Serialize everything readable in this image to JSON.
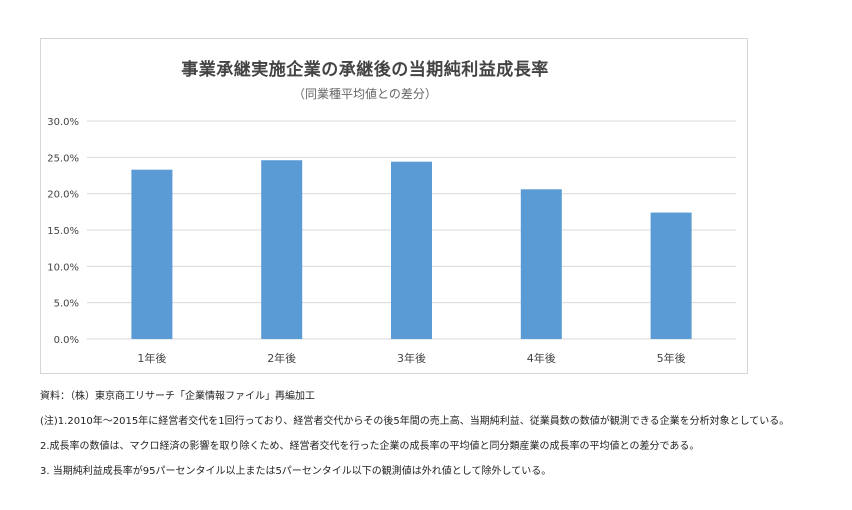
{
  "chart_data": {
    "type": "bar",
    "title": "事業承継実施企業の承継後の当期純利益成長率",
    "subtitle": "（同業種平均値との差分）",
    "categories": [
      "1年後",
      "2年後",
      "3年後",
      "4年後",
      "5年後"
    ],
    "values": [
      23.3,
      24.6,
      24.4,
      20.6,
      17.4
    ],
    "y_ticks": [
      "0.0%",
      "5.0%",
      "10.0%",
      "15.0%",
      "20.0%",
      "25.0%",
      "30.0%"
    ],
    "ylim": [
      0,
      30
    ],
    "grid": true,
    "bar_color": "#5b9bd5",
    "gridline_color": "#d9d9d9"
  },
  "notes": [
    "資料：（株）東京商工リサーチ「企業情報ファイル」再編加工",
    "(注)1.2010年～2015年に経営者交代を1回行っており、経営者交代からその後5年間の売上高、当期純利益、従業員数の数値が観測できる企業を分析対象としている。",
    "2.成長率の数値は、マクロ経済の影響を取り除くため、経営者交代を行った企業の成長率の平均値と同分類産業の成長率の平均値との差分である。",
    "3. 当期純利益成長率が95パーセンタイル以上または5パーセンタイル以下の観測値は外れ値として除外している。"
  ]
}
